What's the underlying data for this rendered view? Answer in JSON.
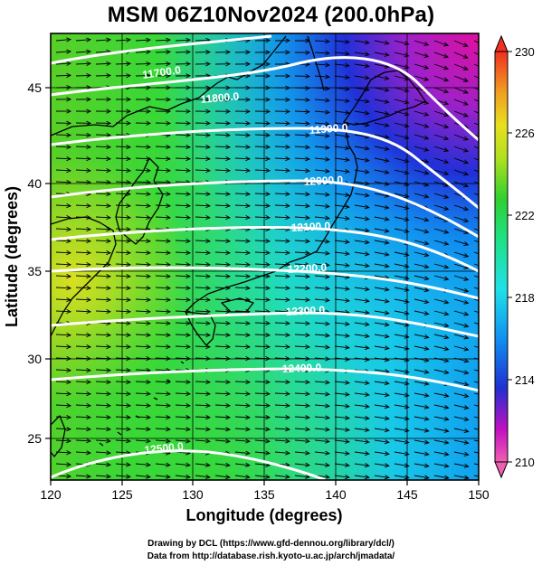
{
  "title": "MSM 06Z10Nov2024 (200.0hPa)",
  "map": {
    "xlabel": "Longitude (degrees)",
    "ylabel": "Latitude  (degrees)",
    "x_ticks": [
      "120",
      "125",
      "130",
      "135",
      "140",
      "145",
      "150"
    ],
    "y_ticks": [
      "25",
      "30",
      "35",
      "40",
      "45"
    ],
    "lon_range": [
      120,
      150
    ],
    "lat_range": [
      22.4,
      47.6
    ],
    "contours": [
      {
        "label": "11700.0"
      },
      {
        "label": "11800.0"
      },
      {
        "label": "11900.0"
      },
      {
        "label": "12000.0"
      },
      {
        "label": "12100.0"
      },
      {
        "label": "12200.0"
      },
      {
        "label": "12300.0"
      },
      {
        "label": "12400.0"
      },
      {
        "label": "12500.0"
      }
    ]
  },
  "colorbar": {
    "ticks": [
      "230",
      "226",
      "222",
      "218",
      "214",
      "210"
    ],
    "range": [
      210,
      230
    ]
  },
  "colors": {
    "magenta": "#e0209a",
    "blue": "#1040d0",
    "cyan": "#20d8e8",
    "green": "#30d838",
    "yellow": "#d8e020"
  },
  "credits": {
    "line1": "Drawing by DCL (https://www.gfd-dennou.org/library/dcl/)",
    "line2": "Data from http://database.rish.kyoto-u.ac.jp/arch/jmadata/"
  }
}
